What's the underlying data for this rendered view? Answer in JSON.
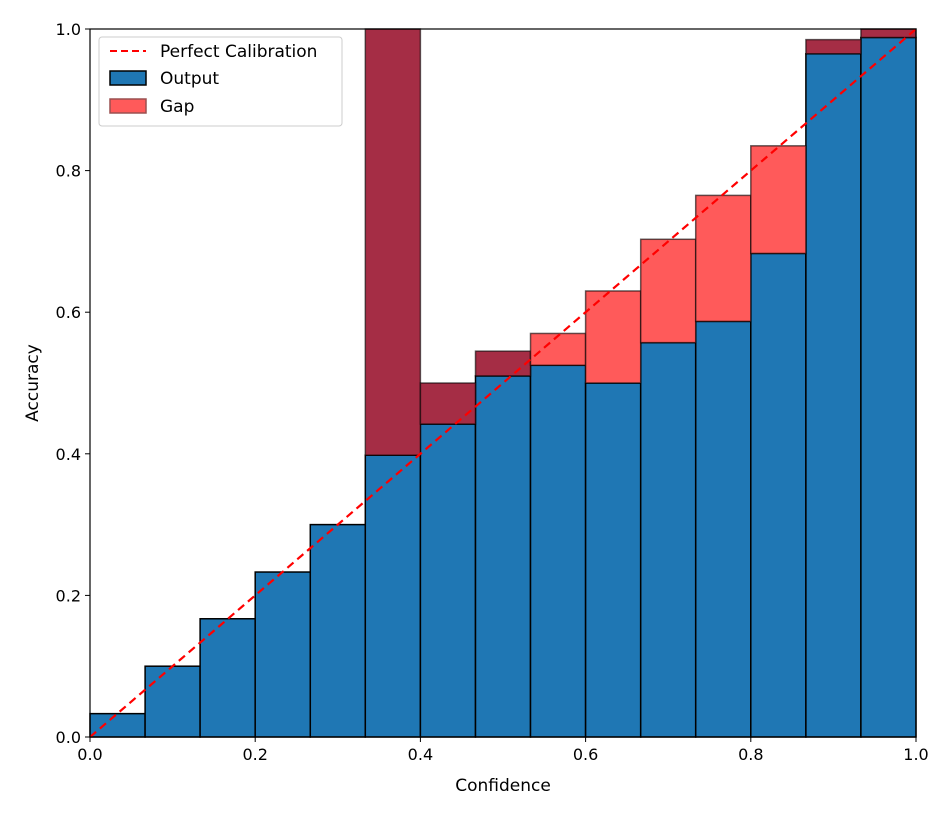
{
  "chart_data": {
    "type": "bar",
    "title": "",
    "xlabel": "Confidence",
    "ylabel": "Accuracy",
    "xlim": [
      0.0,
      1.0
    ],
    "ylim": [
      0.0,
      1.0
    ],
    "xticks": [
      "0.0",
      "0.2",
      "0.4",
      "0.6",
      "0.8",
      "1.0"
    ],
    "yticks": [
      "0.0",
      "0.2",
      "0.4",
      "0.6",
      "0.8",
      "1.0"
    ],
    "bin_edges": [
      0.0,
      0.0667,
      0.1333,
      0.2,
      0.2667,
      0.3333,
      0.4,
      0.4667,
      0.5333,
      0.6,
      0.6667,
      0.7333,
      0.8,
      0.8667,
      0.9333,
      1.0
    ],
    "series": [
      {
        "name": "Output",
        "color": "#1f77b4",
        "values": [
          0.033,
          0.1,
          0.167,
          0.233,
          0.3,
          0.398,
          0.442,
          0.51,
          0.525,
          0.5,
          0.557,
          0.587,
          0.683,
          0.965,
          0.988
        ]
      },
      {
        "name": "Gap",
        "color": "#ff5a5a",
        "overlap_color": "#a52d45",
        "values": [
          0.033,
          0.1,
          0.167,
          0.233,
          0.3,
          1.0,
          0.5,
          0.545,
          0.57,
          0.63,
          0.703,
          0.765,
          0.835,
          0.985,
          1.0
        ]
      }
    ],
    "reference_line": {
      "name": "Perfect Calibration",
      "color": "#ff0000",
      "x": [
        0.0,
        1.0
      ],
      "y": [
        0.0,
        1.0
      ]
    },
    "legend": {
      "position": "top-left",
      "entries": [
        {
          "label": "Perfect Calibration",
          "kind": "dashed-line",
          "color": "#ff0000"
        },
        {
          "label": "Output",
          "kind": "patch",
          "color": "#1f77b4"
        },
        {
          "label": "Gap",
          "kind": "patch",
          "color": "#ff5a5a"
        }
      ]
    }
  }
}
